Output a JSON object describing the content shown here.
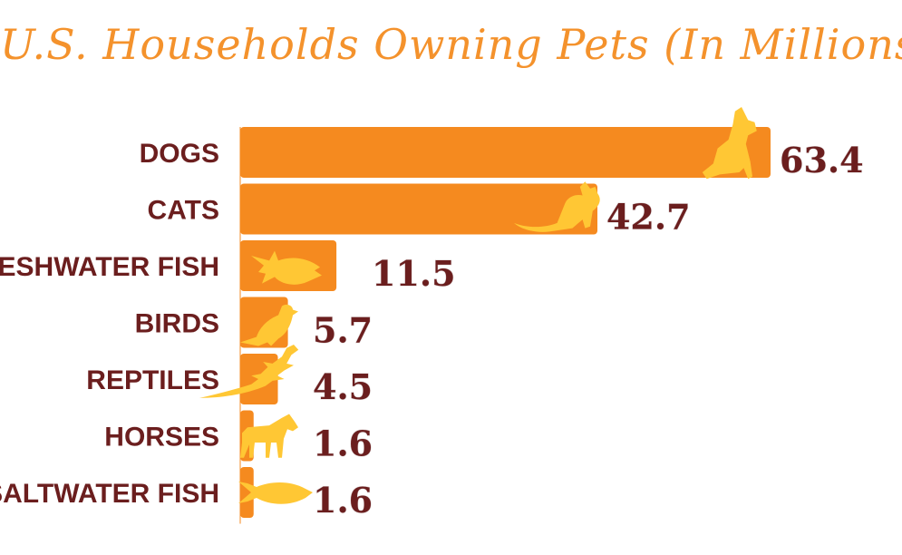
{
  "chart_data": {
    "type": "bar",
    "orientation": "horizontal",
    "title": "U.S. Households Owning Pets (In Millions)",
    "categories": [
      "DOGS",
      "CATS",
      "FRESHWATER FISH",
      "BIRDS",
      "REPTILES",
      "HORSES",
      "SALTWATER FISH"
    ],
    "values": [
      63.4,
      42.7,
      11.5,
      5.7,
      4.5,
      1.6,
      1.6
    ],
    "value_labels": [
      "63.4",
      "42.7",
      "11.5",
      "5.7",
      "4.5",
      "1.6",
      "1.6"
    ],
    "icons": [
      "dog-icon",
      "cat-icon",
      "freshwater-fish-icon",
      "bird-icon",
      "lizard-icon",
      "horse-icon",
      "saltwater-fish-icon"
    ],
    "xlim": [
      0,
      63.4
    ],
    "grid": false,
    "legend": "none",
    "colors": {
      "title": "#f4922c",
      "bar": "#f58a1f",
      "label": "#6b1e1e",
      "icon": "#ffc734"
    }
  }
}
